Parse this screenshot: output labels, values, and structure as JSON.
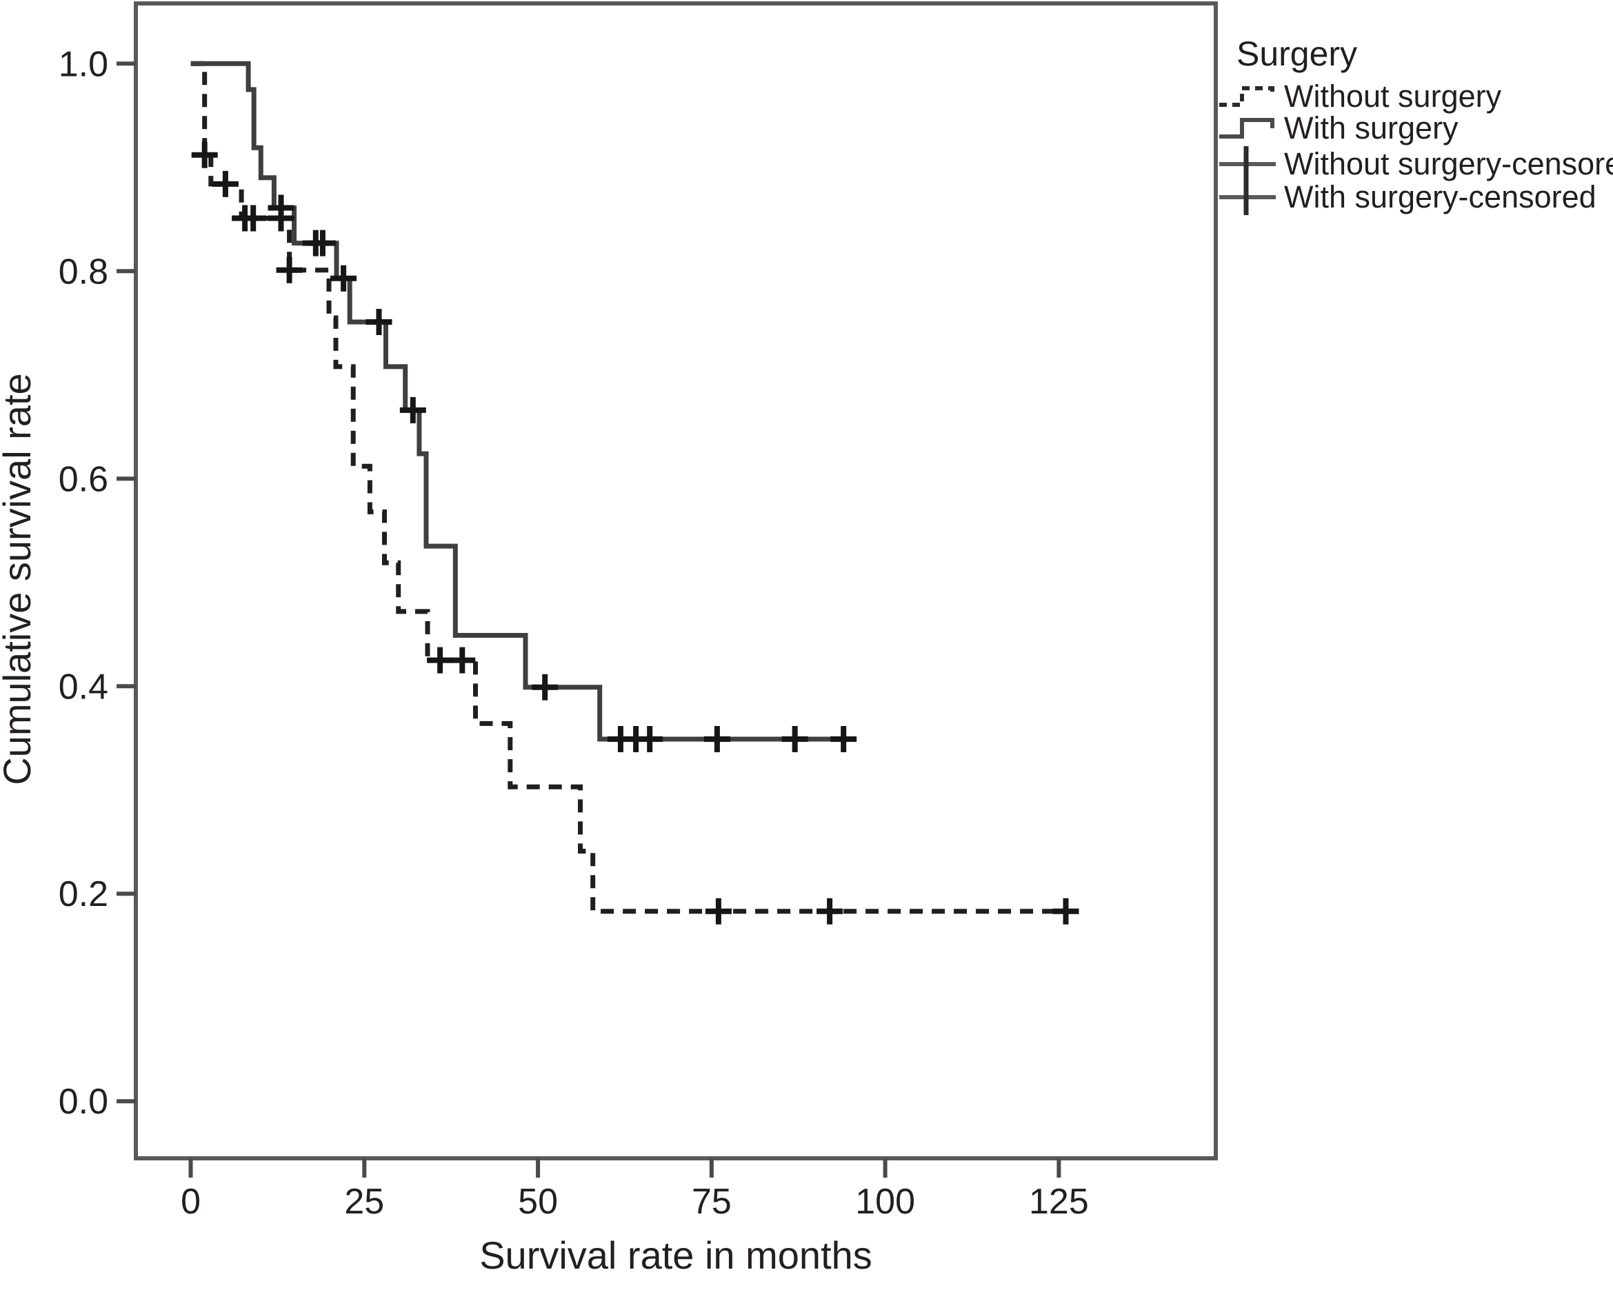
{
  "figure": {
    "background": "#ffffff",
    "text_color": "#231f20",
    "frame_color": "#58595b"
  },
  "chart_data": {
    "type": "line",
    "subtype": "kaplan-meier-step-plot",
    "title": "",
    "xlabel": "Survival rate in months",
    "ylabel": "Cumulative survival rate",
    "xlim": [
      -7.9,
      147.6
    ],
    "ylim": [
      -0.055,
      1.058
    ],
    "grid": false,
    "xticks": {
      "values": [
        0,
        25,
        50,
        75,
        100,
        125
      ],
      "labels": [
        "0",
        "25",
        "50",
        "75",
        "100",
        "125"
      ]
    },
    "yticks": {
      "values": [
        0.0,
        0.2,
        0.4,
        0.6,
        0.8,
        1.0
      ],
      "labels": [
        "0.0",
        "0.2",
        "0.4",
        "0.6",
        "0.8",
        "1.0"
      ]
    },
    "legend": {
      "title": "Surgery",
      "position": "outside-top-right",
      "entries": [
        {
          "label": "Without surgery",
          "style": "dashed-step-line"
        },
        {
          "label": "With surgery",
          "style": "solid-step-line"
        },
        {
          "label": "Without surgery-censored",
          "style": "plus-marker-on-line"
        },
        {
          "label": "With surgery-censored",
          "style": "plus-marker-on-line"
        }
      ]
    },
    "censor_marker": {
      "shape": "plus",
      "color": "#161616",
      "arm": 19,
      "stroke_width": 8
    },
    "series": [
      {
        "name": "Without surgery",
        "line": "dashed",
        "color": "#1f1f1f",
        "start": [
          0,
          1.0
        ],
        "drops": [
          [
            2.0,
            0.912
          ],
          [
            2.9,
            0.884
          ],
          [
            7.3,
            0.851
          ],
          [
            14.2,
            0.801
          ],
          [
            19.9,
            0.755
          ],
          [
            20.9,
            0.708
          ],
          [
            23.4,
            0.612
          ],
          [
            25.8,
            0.568
          ],
          [
            27.9,
            0.519
          ],
          [
            29.9,
            0.472
          ],
          [
            34.1,
            0.425
          ],
          [
            41.0,
            0.364
          ],
          [
            46.0,
            0.303
          ],
          [
            56.1,
            0.241
          ],
          [
            57.9,
            0.183
          ]
        ],
        "end_time": 126.3,
        "censored": [
          [
            2.0,
            0.912
          ],
          [
            5.0,
            0.884
          ],
          [
            7.8,
            0.851
          ],
          [
            9.0,
            0.851
          ],
          [
            13.0,
            0.851
          ],
          [
            14.2,
            0.801
          ],
          [
            35.9,
            0.425
          ],
          [
            39.1,
            0.425
          ],
          [
            76.0,
            0.183
          ],
          [
            92.0,
            0.183
          ],
          [
            126.0,
            0.183
          ]
        ]
      },
      {
        "name": "With surgery",
        "line": "solid",
        "color": "#3f3f41",
        "start": [
          0,
          1.0
        ],
        "drops": [
          [
            8.3,
            0.975
          ],
          [
            9.1,
            0.919
          ],
          [
            10.1,
            0.89
          ],
          [
            12.0,
            0.861
          ],
          [
            14.9,
            0.827
          ],
          [
            21.0,
            0.793
          ],
          [
            22.9,
            0.751
          ],
          [
            28.1,
            0.708
          ],
          [
            30.9,
            0.666
          ],
          [
            32.9,
            0.624
          ],
          [
            33.9,
            0.535
          ],
          [
            38.1,
            0.449
          ],
          [
            48.2,
            0.399
          ],
          [
            58.9,
            0.349
          ]
        ],
        "end_time": 94.0,
        "censored": [
          [
            13.0,
            0.861
          ],
          [
            18.0,
            0.827
          ],
          [
            19.0,
            0.827
          ],
          [
            22.0,
            0.793
          ],
          [
            27.1,
            0.751
          ],
          [
            32.0,
            0.666
          ],
          [
            51.0,
            0.399
          ],
          [
            61.9,
            0.349
          ],
          [
            64.1,
            0.349
          ],
          [
            66.1,
            0.349
          ],
          [
            75.8,
            0.349
          ],
          [
            87.0,
            0.349
          ],
          [
            94.0,
            0.349
          ]
        ]
      }
    ]
  }
}
